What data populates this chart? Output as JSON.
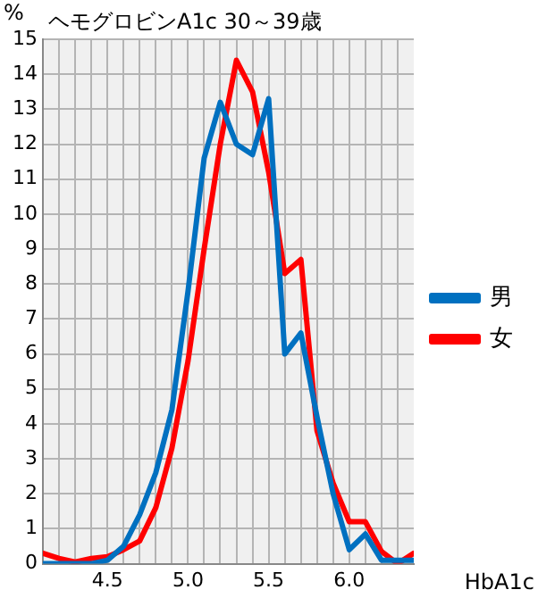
{
  "chart_data": {
    "type": "line",
    "title": "ヘモグロビンA1c 30～39歳",
    "xlabel": "HbA1c",
    "ylabel": "%",
    "x": [
      4.1,
      4.2,
      4.3,
      4.4,
      4.5,
      4.6,
      4.7,
      4.8,
      4.9,
      5.0,
      5.1,
      5.2,
      5.3,
      5.4,
      5.5,
      5.6,
      5.7,
      5.8,
      5.9,
      6.0,
      6.1,
      6.2,
      6.3,
      6.4
    ],
    "series": [
      {
        "name": "男",
        "color": "#0070c0",
        "values": [
          0,
          0,
          0,
          0,
          0.1,
          0.5,
          1.4,
          2.6,
          4.4,
          7.8,
          11.6,
          13.2,
          12.0,
          11.7,
          13.3,
          6.0,
          6.6,
          4.2,
          2.0,
          0.4,
          0.85,
          0.1,
          0.1,
          0.1
        ]
      },
      {
        "name": "女",
        "color": "#ff0000",
        "values": [
          0.3,
          0.15,
          0.05,
          0.15,
          0.2,
          0.4,
          0.65,
          1.6,
          3.3,
          5.8,
          9.0,
          12.0,
          14.4,
          13.5,
          11.2,
          8.3,
          8.7,
          3.8,
          2.3,
          1.2,
          1.2,
          0.35,
          0,
          0.3
        ]
      }
    ],
    "xlim": [
      4.1,
      6.4
    ],
    "xticks": [
      {
        "value": 4.2,
        "label": null
      },
      {
        "value": 4.3,
        "label": null
      },
      {
        "value": 4.4,
        "label": null
      },
      4.5,
      {
        "value": 4.6,
        "label": null
      },
      {
        "value": 4.7,
        "label": null
      },
      {
        "value": 4.8,
        "label": null
      },
      {
        "value": 4.9,
        "label": null
      },
      {
        "value": 5.0,
        "label": "5.0"
      },
      {
        "value": 5.1,
        "label": null
      },
      {
        "value": 5.2,
        "label": null
      },
      {
        "value": 5.3,
        "label": null
      },
      {
        "value": 5.4,
        "label": null
      },
      5.5,
      {
        "value": 5.6,
        "label": null
      },
      {
        "value": 5.7,
        "label": null
      },
      {
        "value": 5.8,
        "label": null
      },
      {
        "value": 5.9,
        "label": null
      },
      {
        "value": 6.0,
        "label": "6.0"
      },
      {
        "value": 6.1,
        "label": null
      },
      {
        "value": 6.2,
        "label": null
      },
      {
        "value": 6.3,
        "label": null
      }
    ],
    "ylim": [
      0,
      15
    ],
    "yticks": [
      0,
      1,
      2,
      3,
      4,
      5,
      6,
      7,
      8,
      9,
      10,
      11,
      12,
      13,
      14,
      15
    ],
    "grid": true,
    "legend": "right",
    "marker": "none",
    "line_style": "solid"
  }
}
